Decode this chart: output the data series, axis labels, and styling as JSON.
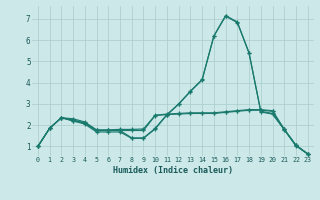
{
  "xlabel": "Humidex (Indice chaleur)",
  "bg_color": "#cce8e8",
  "grid_color": "#aacccc",
  "line_color": "#1a7a6e",
  "xlim": [
    -0.5,
    23.5
  ],
  "ylim": [
    0.55,
    7.6
  ],
  "xticks": [
    0,
    1,
    2,
    3,
    4,
    5,
    6,
    7,
    8,
    9,
    10,
    11,
    12,
    13,
    14,
    15,
    16,
    17,
    18,
    19,
    20,
    21,
    22,
    23
  ],
  "yticks": [
    1,
    2,
    3,
    4,
    5,
    6,
    7
  ],
  "lines": [
    [
      1.0,
      1.85,
      2.35,
      2.2,
      2.1,
      1.75,
      1.75,
      1.75,
      1.4,
      1.4,
      1.85,
      2.5,
      3.0,
      3.6,
      4.15,
      6.2,
      7.15,
      6.85,
      5.4,
      2.65,
      2.55,
      1.8,
      1.05,
      0.65
    ],
    [
      1.0,
      1.85,
      2.35,
      2.25,
      2.1,
      1.75,
      1.75,
      1.75,
      1.75,
      1.75,
      2.45,
      2.5,
      2.52,
      2.55,
      2.55,
      2.55,
      2.6,
      2.65,
      2.7,
      2.7,
      2.65,
      1.8,
      1.05,
      0.65
    ],
    [
      1.0,
      1.85,
      2.35,
      2.3,
      2.15,
      1.78,
      1.78,
      1.8,
      1.8,
      1.82,
      2.47,
      2.52,
      2.55,
      2.58,
      2.58,
      2.58,
      2.63,
      2.68,
      2.73,
      2.73,
      2.68,
      1.8,
      1.05,
      0.65
    ],
    [
      1.0,
      1.85,
      2.35,
      2.2,
      2.05,
      1.68,
      1.68,
      1.68,
      1.38,
      1.38,
      1.82,
      2.48,
      2.98,
      3.58,
      4.12,
      6.18,
      7.12,
      6.82,
      5.38,
      2.62,
      2.52,
      1.78,
      1.02,
      0.65
    ]
  ]
}
